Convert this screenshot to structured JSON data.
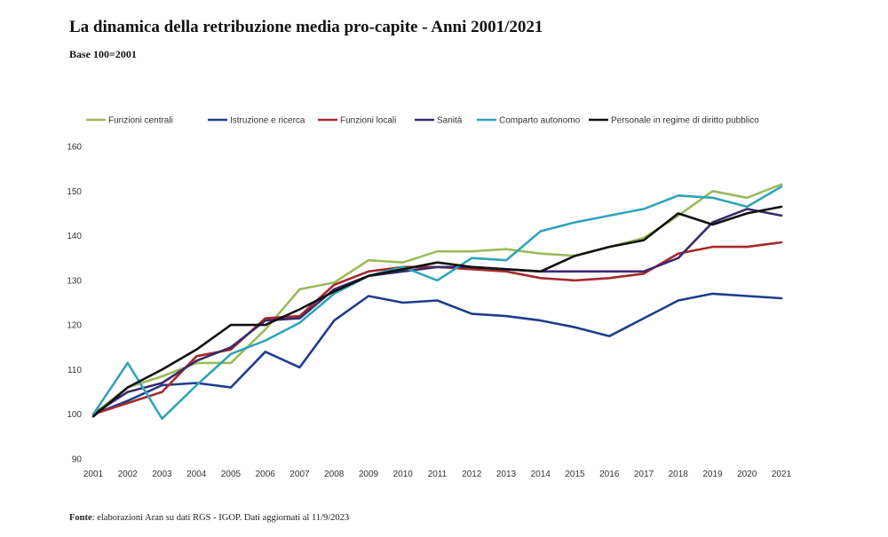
{
  "header": {
    "title": "La dinamica della retribuzione media pro-capite - Anni 2001/2021",
    "subtitle": "Base 100=2001"
  },
  "footer": {
    "source_label": "Fonte",
    "source_text": ": elaborazioni Aran su dati RGS - IGOP. Dati aggiornati al 11/9/2023"
  },
  "chart_data": {
    "type": "line",
    "x": [
      "2001",
      "2002",
      "2003",
      "2004",
      "2005",
      "2006",
      "2007",
      "2008",
      "2009",
      "2010",
      "2011",
      "2012",
      "2013",
      "2014",
      "2015",
      "2016",
      "2017",
      "2018",
      "2019",
      "2020",
      "2021"
    ],
    "ylim": [
      90,
      160
    ],
    "yticks": [
      90,
      100,
      110,
      120,
      130,
      140,
      150,
      160
    ],
    "grid": false,
    "legend": "top",
    "series": [
      {
        "name": "Funzioni centrali",
        "color": "#9bbb59",
        "values": [
          100,
          106,
          108.5,
          111.5,
          111.5,
          119,
          128,
          129.5,
          134.5,
          134,
          136.5,
          136.5,
          137,
          136,
          135.5,
          137.5,
          139.5,
          144.5,
          150,
          148.5,
          151.5
        ]
      },
      {
        "name": "Istruzione e ricerca",
        "color": "#1f3d8c",
        "values": [
          100,
          103,
          106.5,
          107,
          106,
          114,
          110.5,
          121,
          126.5,
          125,
          125.5,
          122.5,
          122,
          121,
          119.5,
          117.5,
          121.5,
          125.5,
          127,
          126.5,
          126
        ]
      },
      {
        "name": "Funzioni locali",
        "color": "#a52a2a",
        "values": [
          100,
          102.5,
          105,
          113,
          114.5,
          121.5,
          122,
          129,
          132,
          133,
          133,
          132.5,
          132,
          130.5,
          130,
          130.5,
          131.5,
          136,
          137.5,
          137.5,
          138.5
        ]
      },
      {
        "name": "Sanità",
        "color": "#3b2a6b",
        "values": [
          100,
          105,
          107,
          112,
          115,
          121,
          121.5,
          128,
          131,
          132,
          133,
          133,
          132.5,
          132,
          132,
          132,
          132,
          135,
          143,
          146,
          144.5
        ]
      },
      {
        "name": "Comparto autonomo",
        "color": "#31a4b8",
        "values": [
          100,
          111.5,
          99,
          106.5,
          113.5,
          116.5,
          120.5,
          127,
          131,
          133,
          130,
          135,
          134.5,
          141,
          143,
          144.5,
          146,
          149,
          148.5,
          146.5,
          151
        ]
      },
      {
        "name": "Personale in regime di diritto pubblico",
        "color": "#111111",
        "values": [
          99.5,
          106,
          110,
          114.5,
          120,
          120,
          123.5,
          127.5,
          131,
          132.5,
          134,
          133,
          132.5,
          132,
          135.5,
          137.5,
          139,
          145,
          142.5,
          145,
          146.5
        ]
      }
    ]
  }
}
